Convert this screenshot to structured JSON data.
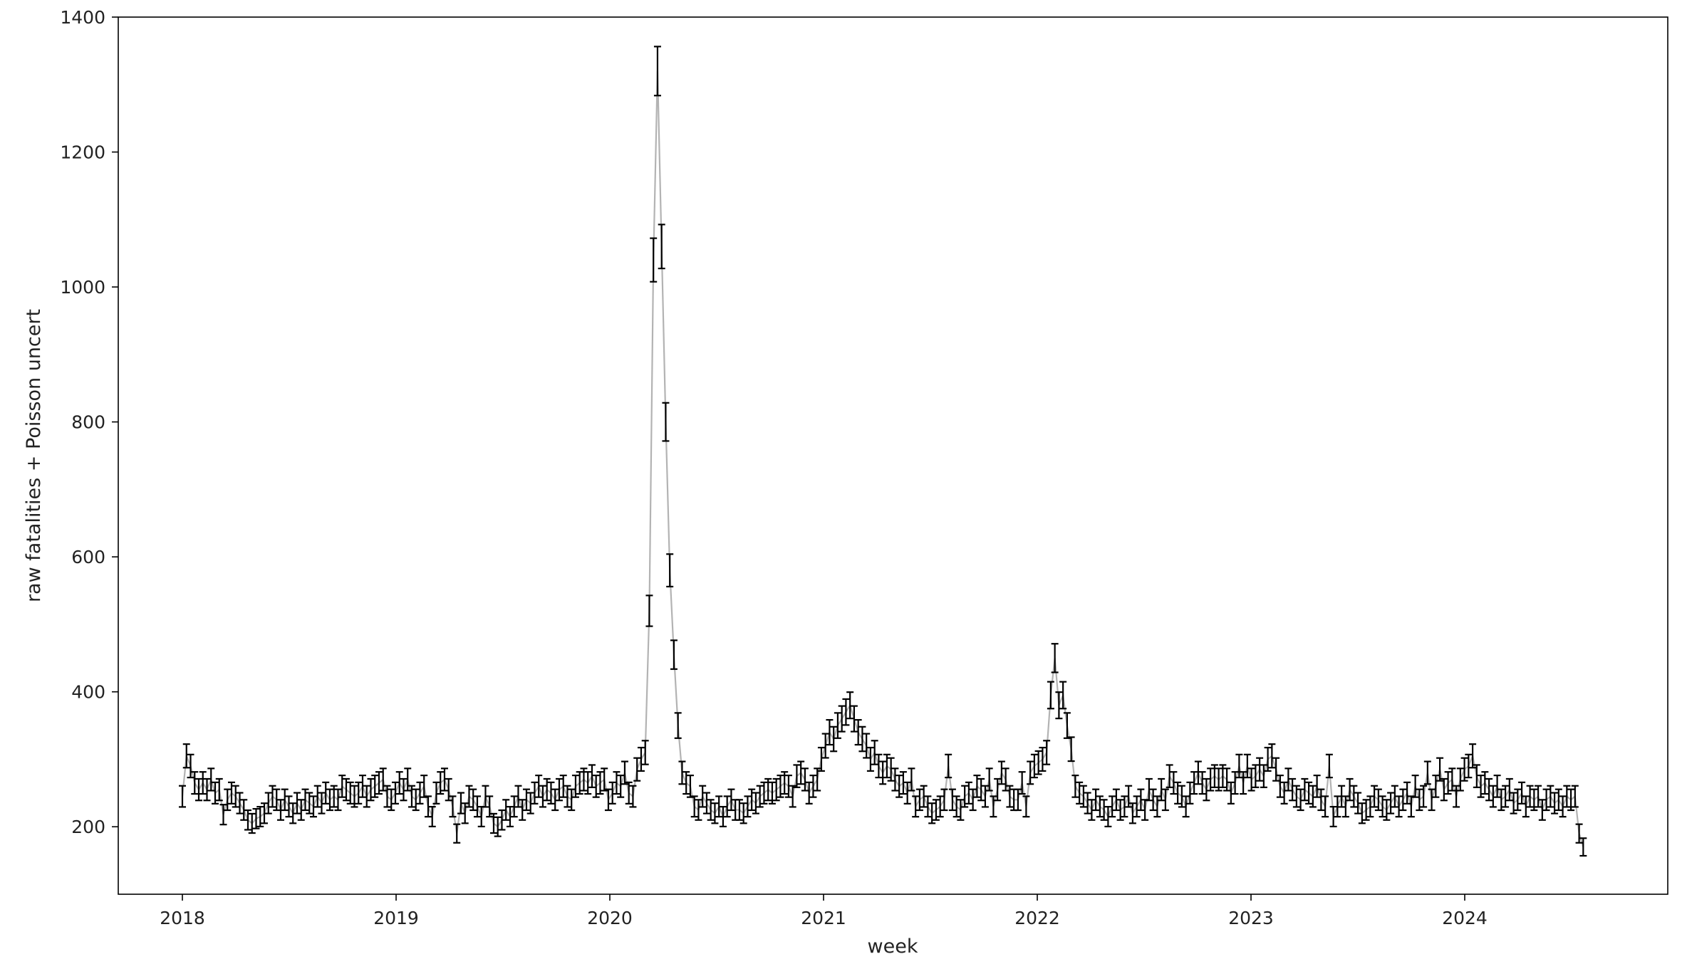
{
  "chart_data": {
    "type": "line",
    "title": "",
    "xlabel": "week",
    "ylabel": "raw fatalities + Poisson uncert",
    "xlim": [
      2017.7,
      2024.95
    ],
    "ylim": [
      100,
      1400
    ],
    "grid": false,
    "x_ticks": [
      {
        "value": 2018,
        "label": "2018"
      },
      {
        "value": 2019,
        "label": "2019"
      },
      {
        "value": 2020,
        "label": "2020"
      },
      {
        "value": 2021,
        "label": "2021"
      },
      {
        "value": 2022,
        "label": "2022"
      },
      {
        "value": 2023,
        "label": "2023"
      },
      {
        "value": 2024,
        "label": "2024"
      }
    ],
    "y_ticks": [
      {
        "value": 200,
        "label": "200"
      },
      {
        "value": 400,
        "label": "400"
      },
      {
        "value": 600,
        "label": "600"
      },
      {
        "value": 800,
        "label": "800"
      },
      {
        "value": 1000,
        "label": "1000"
      },
      {
        "value": 1200,
        "label": "1200"
      },
      {
        "value": 1400,
        "label": "1400"
      }
    ],
    "line_color": "#b3b3b3",
    "errorbar_color": "#000000",
    "errorbars": "sqrt(y)",
    "series": [
      {
        "start_year": 2018.0,
        "step_years": 0.019165,
        "y": [
          245,
          305,
          290,
          265,
          255,
          265,
          255,
          270,
          250,
          255,
          218,
          240,
          250,
          245,
          235,
          225,
          210,
          205,
          212,
          215,
          220,
          235,
          245,
          240,
          225,
          240,
          230,
          220,
          235,
          225,
          240,
          235,
          230,
          245,
          235,
          250,
          240,
          245,
          240,
          260,
          255,
          250,
          245,
          250,
          260,
          245,
          255,
          260,
          265,
          270,
          245,
          240,
          250,
          265,
          255,
          270,
          245,
          240,
          250,
          260,
          230,
          215,
          250,
          265,
          270,
          255,
          230,
          190,
          235,
          220,
          245,
          240,
          230,
          215,
          245,
          230,
          205,
          200,
          210,
          225,
          215,
          230,
          245,
          225,
          240,
          235,
          250,
          260,
          245,
          255,
          250,
          240,
          255,
          260,
          245,
          240,
          260,
          265,
          270,
          265,
          275,
          260,
          265,
          270,
          240,
          250,
          265,
          260,
          280,
          250,
          245,
          285,
          300,
          310,
          520,
          1040,
          1320,
          1060,
          800,
          580,
          455,
          350,
          280,
          265,
          260,
          230,
          225,
          245,
          235,
          225,
          220,
          230,
          215,
          230,
          240,
          225,
          225,
          220,
          230,
          240,
          235,
          245,
          250,
          255,
          250,
          255,
          260,
          265,
          260,
          245,
          275,
          280,
          270,
          250,
          260,
          270,
          300,
          320,
          340,
          330,
          350,
          360,
          370,
          380,
          360,
          340,
          330,
          320,
          300,
          310,
          290,
          280,
          290,
          285,
          270,
          260,
          265,
          250,
          270,
          230,
          240,
          245,
          230,
          220,
          225,
          230,
          240,
          290,
          240,
          230,
          225,
          245,
          250,
          240,
          260,
          255,
          245,
          270,
          230,
          255,
          280,
          270,
          245,
          240,
          240,
          265,
          230,
          280,
          290,
          295,
          300,
          310,
          395,
          450,
          380,
          395,
          350,
          315,
          260,
          250,
          245,
          235,
          225,
          240,
          230,
          225,
          215,
          230,
          240,
          225,
          230,
          245,
          220,
          230,
          240,
          225,
          255,
          240,
          230,
          255,
          240,
          275,
          265,
          250,
          245,
          230,
          250,
          265,
          280,
          265,
          255,
          270,
          275,
          270,
          275,
          270,
          250,
          265,
          290,
          265,
          290,
          270,
          275,
          285,
          275,
          300,
          305,
          285,
          260,
          250,
          270,
          255,
          245,
          240,
          255,
          250,
          245,
          260,
          240,
          230,
          290,
          215,
          230,
          245,
          230,
          255,
          245,
          235,
          220,
          225,
          230,
          245,
          240,
          230,
          225,
          235,
          245,
          230,
          240,
          250,
          230,
          260,
          240,
          245,
          280,
          240,
          260,
          285,
          255,
          265,
          270,
          245,
          270,
          285,
          290,
          305,
          275,
          260,
          265,
          255,
          245,
          260,
          240,
          245,
          255,
          235,
          240,
          250,
          230,
          245,
          240,
          245,
          225,
          240,
          245,
          235,
          240,
          230,
          245,
          240,
          245,
          190,
          170
        ]
      }
    ]
  }
}
